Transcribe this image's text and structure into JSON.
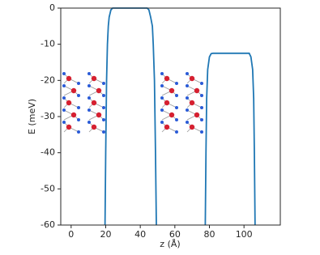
{
  "chart_data": {
    "type": "line",
    "x_label": "z (Å)",
    "y_label": "E (meV)",
    "x": [
      19.6,
      20,
      20.5,
      21,
      21.5,
      22,
      23,
      24,
      44,
      45,
      46,
      47,
      47.5,
      48.2,
      48.8,
      49.3,
      63,
      77.6,
      78,
      78.4,
      79,
      80,
      81,
      82,
      103,
      104,
      105,
      105.6,
      106,
      106.4
    ],
    "series": [
      {
        "color": "#1f77b4",
        "values": [
          -60,
          -40,
          -20,
          -10,
          -5,
          -2.5,
          -0.5,
          0,
          0,
          -0.5,
          -2.5,
          -5,
          -10,
          -20,
          -40,
          -60,
          null,
          -60,
          -40,
          -25,
          -17,
          -13.5,
          -12.6,
          -12.5,
          -12.5,
          -13.5,
          -17,
          -25,
          -40,
          -60
        ]
      }
    ],
    "xlim": [
      -6,
      121
    ],
    "ylim": [
      -60,
      0
    ],
    "xticks": [
      0,
      20,
      40,
      60,
      80,
      100
    ],
    "yticks": [
      0,
      -10,
      -20,
      -30,
      -40,
      -50,
      -60
    ]
  }
}
